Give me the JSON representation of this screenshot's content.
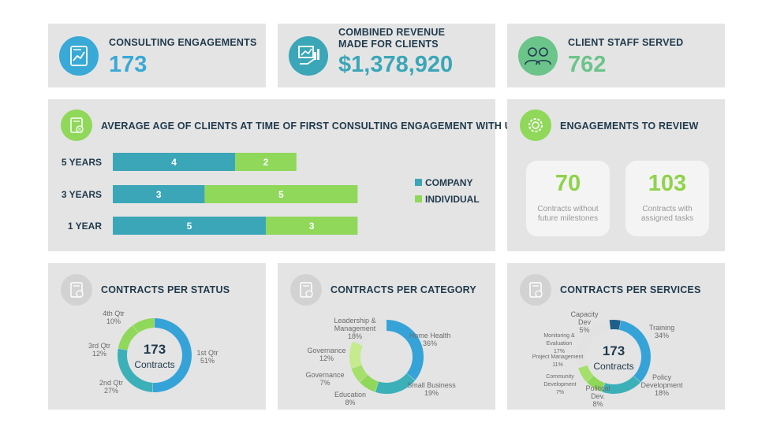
{
  "kpis": {
    "engagements": {
      "title": "CONSULTING ENGAGEMENTS",
      "value": "173",
      "icon": "document-chart-icon",
      "color": "#39a9d7"
    },
    "revenue": {
      "title_line1": "COMBINED REVENUE",
      "title_line2": "MADE FOR CLIENTS",
      "value": "$1,378,920",
      "icon": "presentation-chart-icon",
      "color": "#3ba6b8"
    },
    "staff": {
      "title": "CLIENT STAFF SERVED",
      "value": "762",
      "icon": "people-icon",
      "color": "#6bc48a"
    }
  },
  "age_section": {
    "title": "AVERAGE AGE OF CLIENTS AT TIME OF FIRST CONSULTING ENGAGEMENT WITH US",
    "icon": "document-percent-icon"
  },
  "review": {
    "title": "ENGAGEMENTS TO REVIEW",
    "icon": "gear-people-icon",
    "tiles": [
      {
        "value": "70",
        "label_line1": "Contracts without",
        "label_line2": "future milestones"
      },
      {
        "value": "103",
        "label_line1": "Contracts with",
        "label_line2": "assigned tasks"
      }
    ]
  },
  "status_section": {
    "title": "CONTRACTS PER STATUS",
    "icon": "document-percent-icon",
    "center_value": "173",
    "center_label": "Contracts"
  },
  "category_section": {
    "title": "CONTRACTS PER CATEGORY",
    "icon": "document-percent-icon"
  },
  "services_section": {
    "title": "CONTRACTS PER SERVICES",
    "icon": "document-percent-icon",
    "center_value": "173",
    "center_label": "Contracts"
  },
  "chart_data": [
    {
      "type": "bar",
      "orientation": "horizontal",
      "stacked": true,
      "title": "AVERAGE AGE OF CLIENTS AT TIME OF FIRST CONSULTING ENGAGEMENT WITH US",
      "categories": [
        "5 YEARS",
        "3 YEARS",
        "1 YEAR"
      ],
      "series": [
        {
          "name": "COMPANY",
          "values": [
            4,
            3,
            5
          ],
          "color": "#3ba6b8"
        },
        {
          "name": "INDIVIDUAL",
          "values": [
            2,
            5,
            3
          ],
          "color": "#8fd85a"
        }
      ],
      "legend": "right"
    },
    {
      "type": "pie",
      "donut": true,
      "title": "CONTRACTS PER STATUS",
      "slices": [
        {
          "name": "1st Qtr",
          "value": 51,
          "label": "51%",
          "color": "#36a3d8"
        },
        {
          "name": "2nd Qtr",
          "value": 27,
          "label": "27%",
          "color": "#3cb0b8"
        },
        {
          "name": "3rd Qtr",
          "value": 12,
          "label": "12%",
          "color": "#8fd85a"
        },
        {
          "name": "4th Qtr",
          "value": 10,
          "label": "10%",
          "color": "#8fd85a"
        }
      ]
    },
    {
      "type": "pie",
      "donut": true,
      "title": "CONTRACTS PER CATEGORY",
      "slices": [
        {
          "name": "Home Health",
          "value": 36,
          "label": "36%",
          "color": "#36a3d8"
        },
        {
          "name": "Small Business",
          "value": 19,
          "label": "19%",
          "color": "#3cb0b8"
        },
        {
          "name": "Education",
          "value": 8,
          "label": "8%",
          "color": "#8fd85a"
        },
        {
          "name": "Governance",
          "value": 7,
          "label": "7%",
          "color": "#a4e06a"
        },
        {
          "name": "Governance",
          "value": 12,
          "label": "12%",
          "color": "#c6ea8e"
        },
        {
          "name": "Leadership & Management",
          "value": 18,
          "label": "18%",
          "color": "#e2e2e2"
        }
      ]
    },
    {
      "type": "pie",
      "donut": true,
      "title": "CONTRACTS PER SERVICES",
      "slices": [
        {
          "name": "Training",
          "value": 34,
          "label": "34%",
          "color": "#36a3d8"
        },
        {
          "name": "Policy Development",
          "value": 18,
          "label": "18%",
          "color": "#3cb0b8"
        },
        {
          "name": "Political Dev.",
          "value": 8,
          "label": "8%",
          "color": "#8fd85a"
        },
        {
          "name": "Community Development",
          "value": 7,
          "label": "7%",
          "color": "#a4e06a"
        },
        {
          "name": "Project Management",
          "value": 11,
          "label": "11%",
          "color": "#e2e2e2"
        },
        {
          "name": "Monitoring & Evaluation",
          "value": 17,
          "label": "17%",
          "color": "#e2e2e2"
        },
        {
          "name": "Capacity Dev",
          "value": 5,
          "label": "5%",
          "color": "#1f5f8a"
        }
      ]
    }
  ]
}
